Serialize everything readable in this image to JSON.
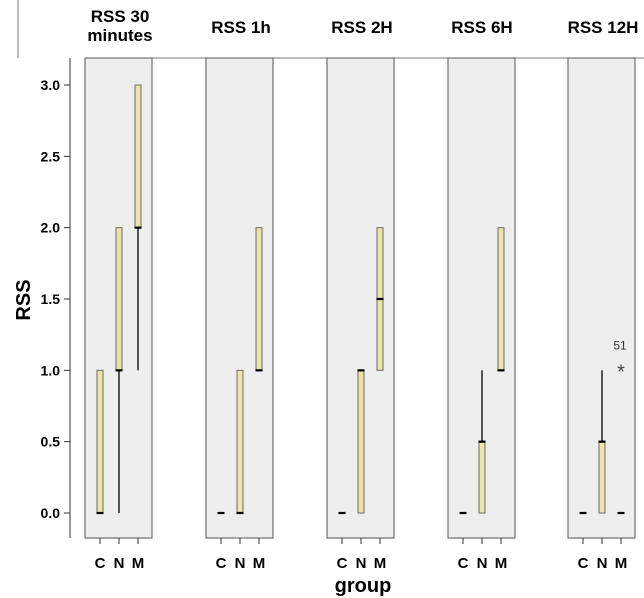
{
  "chart_data": {
    "type": "boxplot",
    "ylabel": "RSS",
    "xlabel": "group",
    "ylim": [
      0,
      3.0
    ],
    "yticks": [
      "0.0",
      "0.5",
      "1.0",
      "1.5",
      "2.0",
      "2.5",
      "3.0"
    ],
    "categories": [
      "C",
      "N",
      "M"
    ],
    "grid": false,
    "colors": {
      "box_fill": "#ece3a9",
      "box_edge": "#6b6b6b",
      "panel_bg": "#eeeeee",
      "panel_edge": "#555555"
    },
    "panels": [
      {
        "title": [
          "RSS 30",
          "minutes"
        ],
        "boxes": [
          {
            "group": "C",
            "min": 0,
            "q1": 0,
            "median": 0,
            "q3": 1,
            "max": 1
          },
          {
            "group": "N",
            "min": 0,
            "q1": 1,
            "median": 1,
            "q3": 2,
            "max": 2
          },
          {
            "group": "M",
            "min": 1,
            "q1": 2,
            "median": 2,
            "q3": 3,
            "max": 3
          }
        ],
        "outliers": []
      },
      {
        "title": [
          "RSS 1h"
        ],
        "boxes": [
          {
            "group": "C",
            "min": 0,
            "q1": 0,
            "median": 0,
            "q3": 0,
            "max": 0
          },
          {
            "group": "N",
            "min": 0,
            "q1": 0,
            "median": 0,
            "q3": 1,
            "max": 1
          },
          {
            "group": "M",
            "min": 1,
            "q1": 1,
            "median": 1,
            "q3": 2,
            "max": 2
          }
        ],
        "outliers": []
      },
      {
        "title": [
          "RSS 2H"
        ],
        "boxes": [
          {
            "group": "C",
            "min": 0,
            "q1": 0,
            "median": 0,
            "q3": 0,
            "max": 0
          },
          {
            "group": "N",
            "min": 0,
            "q1": 0,
            "median": 1,
            "q3": 1,
            "max": 1
          },
          {
            "group": "M",
            "min": 1,
            "q1": 1,
            "median": 1.5,
            "q3": 2,
            "max": 2
          }
        ],
        "outliers": []
      },
      {
        "title": [
          "RSS 6H"
        ],
        "boxes": [
          {
            "group": "C",
            "min": 0,
            "q1": 0,
            "median": 0,
            "q3": 0,
            "max": 0
          },
          {
            "group": "N",
            "min": 0,
            "q1": 0,
            "median": 0.5,
            "q3": 0.5,
            "max": 1
          },
          {
            "group": "M",
            "min": 1,
            "q1": 1,
            "median": 1,
            "q3": 2,
            "max": 2
          }
        ],
        "outliers": []
      },
      {
        "title": [
          "RSS 12H"
        ],
        "boxes": [
          {
            "group": "C",
            "min": 0,
            "q1": 0,
            "median": 0,
            "q3": 0,
            "max": 0
          },
          {
            "group": "N",
            "min": 0,
            "q1": 0,
            "median": 0.5,
            "q3": 0.5,
            "max": 1
          },
          {
            "group": "M",
            "min": 0,
            "q1": 0,
            "median": 0,
            "q3": 0,
            "max": 0
          }
        ],
        "outliers": [
          {
            "group": "M",
            "value": 1,
            "label": "51",
            "marker": "*"
          }
        ]
      }
    ]
  }
}
